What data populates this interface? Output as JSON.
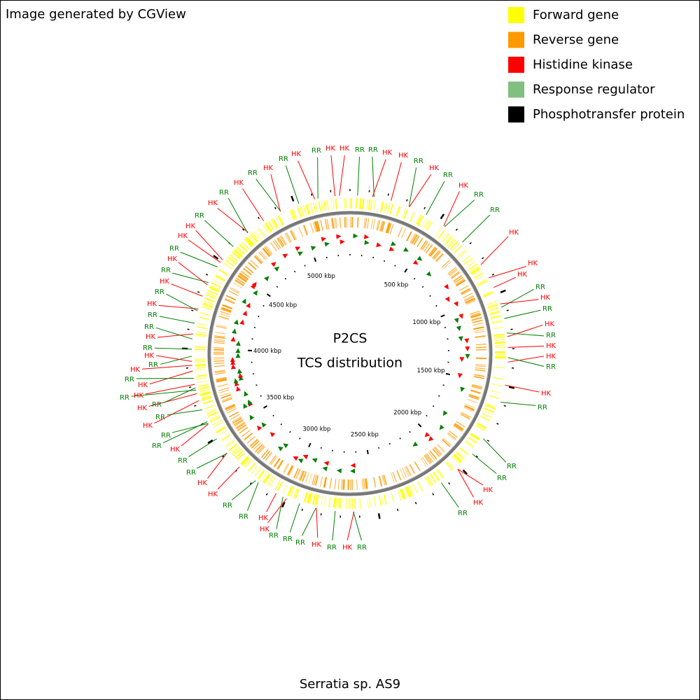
{
  "header": {
    "credit": "Image generated by CGView"
  },
  "legend": {
    "items": [
      {
        "label": "Forward gene",
        "color": "#ffff00"
      },
      {
        "label": "Reverse gene",
        "color": "#ff9900"
      },
      {
        "label": "Histidine kinase",
        "color": "#ff0000"
      },
      {
        "label": "Response regulator",
        "color": "#7fbf7f"
      },
      {
        "label": "Phosphotransfer protein",
        "color": "#000000"
      }
    ]
  },
  "map": {
    "title": [
      "P2CS",
      "TCS distribution"
    ],
    "ticks": [
      "500 kbp",
      "1000 kbp",
      "1500 kbp",
      "2000 kbp",
      "2500 kbp",
      "3000 kbp",
      "3500 kbp",
      "4000 kbp",
      "4500 kbp",
      "5000 kbp"
    ],
    "labels": [
      "HK",
      "RR",
      "RR",
      "HK",
      "HK",
      "RR",
      "HK",
      "RR",
      "HK",
      "RR",
      "RR",
      "HK",
      "HK",
      "HK",
      "RR",
      "HK",
      "RR",
      "HK",
      "RR",
      "HK",
      "HK",
      "RR",
      "HK",
      "RR",
      "RR",
      "RR",
      "HK",
      "HK",
      "RR",
      "RR",
      "HK",
      "RR",
      "HK",
      "RR",
      "RR",
      "RR",
      "HK",
      "HK",
      "RR",
      "RR",
      "HK",
      "HK",
      "RR",
      "RR",
      "HK",
      "RR",
      "RR",
      "HK",
      "RR",
      "HK",
      "RR",
      "RR",
      "HK",
      "HK",
      "RR",
      "HK",
      "RR",
      "HK",
      "RR",
      "HK",
      "RR",
      "RR",
      "HK",
      "RR",
      "HK",
      "RR",
      "HK",
      "HK",
      "RR",
      "HK",
      "RR",
      "HK",
      "RR",
      "HK",
      "RR",
      "HK",
      "RR",
      "HK",
      "RR",
      "HK"
    ]
  },
  "footer": {
    "organism": "Serratia sp. AS9"
  }
}
